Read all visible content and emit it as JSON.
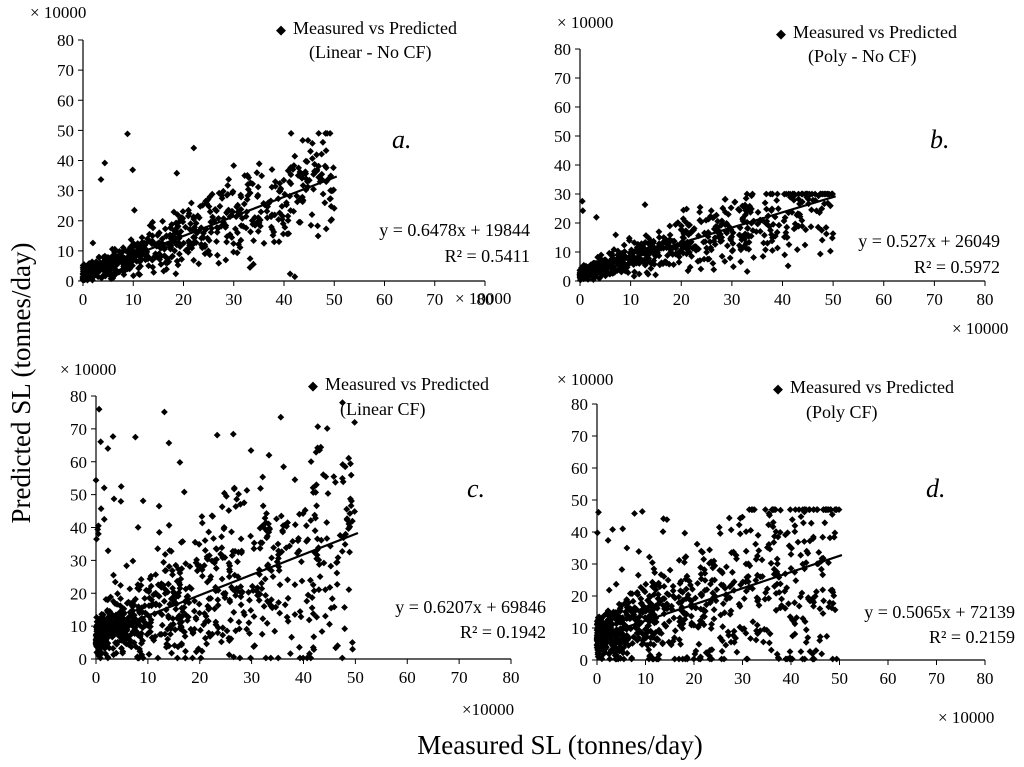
{
  "figure": {
    "ylabel": "Predicted SL (tonnes/day)",
    "xlabel": "Measured SL (tonnes/day)"
  },
  "chart_data": [
    {
      "type": "scatter",
      "panel_label": "a.",
      "legend": "Measured vs Predicted",
      "legend_line2": "(Linear - No CF)",
      "legend_marker": "◆",
      "y_multiplier": "× 10000",
      "x_multiplier": "× 10000",
      "xlim": [
        0,
        80
      ],
      "ylim": [
        0,
        80
      ],
      "xticks": [
        "0",
        "10",
        "20",
        "30",
        "40",
        "50",
        "60",
        "70",
        "80"
      ],
      "yticks": [
        "0",
        "10",
        "20",
        "30",
        "40",
        "50",
        "60",
        "70",
        "80"
      ],
      "equation": "y = 0.6478x + 19844",
      "r2": "R² = 0.5411",
      "trend": {
        "slope": 0.6478,
        "intercept": 1.9844,
        "x0": 0,
        "x1": 50.5
      },
      "cloud": {
        "n": 700,
        "xmax": 50,
        "scatter": 0.45,
        "ymax": 49,
        "seed": 11
      }
    },
    {
      "type": "scatter",
      "panel_label": "b.",
      "legend": "Measured vs Predicted",
      "legend_line2": "(Poly - No CF)",
      "legend_marker": "◆",
      "y_multiplier": "× 10000",
      "x_multiplier": "× 10000",
      "xlim": [
        0,
        80
      ],
      "ylim": [
        0,
        80
      ],
      "xticks": [
        "0",
        "10",
        "20",
        "30",
        "40",
        "50",
        "60",
        "70",
        "80"
      ],
      "yticks": [
        "0",
        "10",
        "20",
        "30",
        "40",
        "50",
        "60",
        "70",
        "80"
      ],
      "equation": "y = 0.527x + 26049",
      "r2": "R² = 0.5972",
      "trend": {
        "slope": 0.527,
        "intercept": 2.6049,
        "x0": 0,
        "x1": 50.5
      },
      "cloud": {
        "n": 700,
        "xmax": 50,
        "scatter": 0.4,
        "ymax": 30,
        "seed": 23
      }
    },
    {
      "type": "scatter",
      "panel_label": "c.",
      "legend": "Measured vs Predicted",
      "legend_line2": "(Linear CF)",
      "legend_marker": "◆",
      "y_multiplier": "× 10000",
      "x_multiplier": "×10000",
      "xlim": [
        0,
        80
      ],
      "ylim": [
        0,
        80
      ],
      "xticks": [
        "0",
        "10",
        "20",
        "30",
        "40",
        "50",
        "60",
        "70",
        "80"
      ],
      "yticks": [
        "0",
        "10",
        "20",
        "30",
        "40",
        "50",
        "60",
        "70",
        "80"
      ],
      "equation": "y = 0.6207x + 69846",
      "r2": "R² = 0.1942",
      "trend": {
        "slope": 0.6207,
        "intercept": 6.9846,
        "x0": 0,
        "x1": 50.5
      },
      "cloud": {
        "n": 850,
        "xmax": 50,
        "scatter": 1.0,
        "ymax": 78,
        "seed": 37
      }
    },
    {
      "type": "scatter",
      "panel_label": "d.",
      "legend": "Measured vs Predicted",
      "legend_line2": "(Poly CF)",
      "legend_marker": "◆",
      "y_multiplier": "× 10000",
      "x_multiplier": "× 10000",
      "xlim": [
        0,
        80
      ],
      "ylim": [
        0,
        80
      ],
      "xticks": [
        "0",
        "10",
        "20",
        "30",
        "40",
        "50",
        "60",
        "70",
        "80"
      ],
      "yticks": [
        "0",
        "10",
        "20",
        "30",
        "40",
        "50",
        "60",
        "70",
        "80"
      ],
      "equation": "y = 0.5065x + 72139",
      "r2": "R² = 0.2159",
      "trend": {
        "slope": 0.5065,
        "intercept": 7.2139,
        "x0": 0,
        "x1": 50.5
      },
      "cloud": {
        "n": 850,
        "xmax": 50,
        "scatter": 1.0,
        "ymax": 47,
        "seed": 53
      }
    }
  ]
}
